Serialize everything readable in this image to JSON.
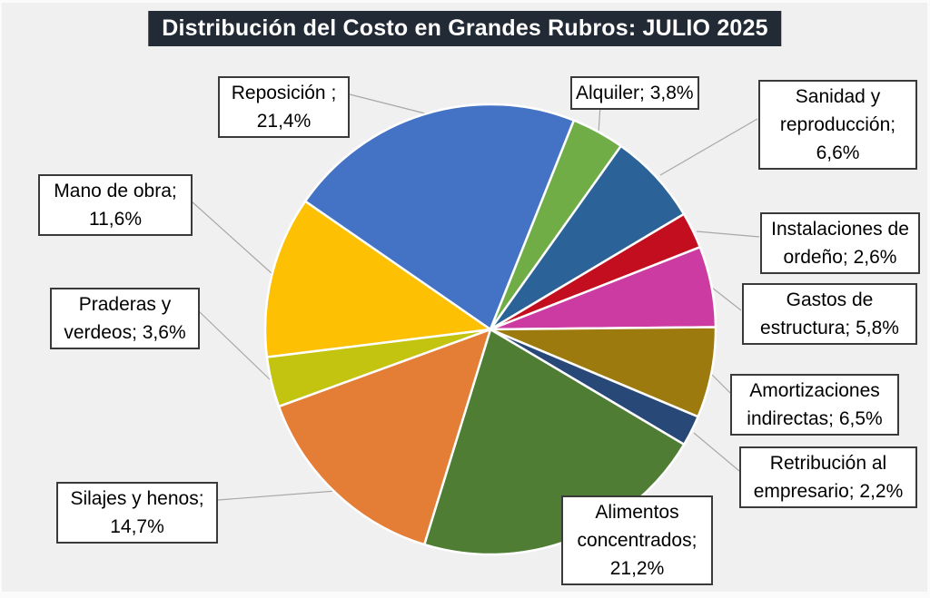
{
  "title": "Distribución del Costo en Grandes Rubros: JULIO 2025",
  "colors": {
    "page_background": "#fbfbfb",
    "chart_background": "#f0f0f0",
    "title_background": "#222a35",
    "title_text": "#ffffff",
    "label_box_background": "#ffffff",
    "label_box_border": "#3a3a3a",
    "leader_line": "#a8a8a8",
    "slice_separator": "#ffffff"
  },
  "chart_data": {
    "type": "pie",
    "title": "Distribución del Costo en Grandes Rubros: JULIO 2025",
    "legend_position": "none",
    "data_label_style": "outside-callout-boxes",
    "value_format": "comma-decimal-percent",
    "start_angle_deg": -55.3,
    "direction": "clockwise",
    "ids": [
      "reposicion",
      "alquiler",
      "sanidad-y-reproduccion",
      "instalaciones-de-ordeno",
      "gastos-de-estructura",
      "amortizaciones-indirectas",
      "retribucion-al-empresario",
      "alimentos-concentrados",
      "silajes-y-henos",
      "praderas-y-verdeos",
      "mano-de-obra"
    ],
    "categories": [
      "Reposición",
      "Alquiler",
      "Sanidad y reproducción",
      "Instalaciones de ordeño",
      "Gastos de estructura",
      "Amortizaciones indirectas",
      "Retribución al empresario",
      "Alimentos concentrados",
      "Silajes y henos",
      "Praderas y verdeos",
      "Mano de obra"
    ],
    "values": [
      21.4,
      3.8,
      6.6,
      2.6,
      5.8,
      6.5,
      2.2,
      21.2,
      14.7,
      3.6,
      11.6
    ],
    "labels": [
      "Reposición ; 21,4%",
      "Alquiler; 3,8%",
      "Sanidad y reproducción; 6,6%",
      "Instalaciones de ordeño; 2,6%",
      "Gastos de estructura; 5,8%",
      "Amortizaciones indirectas; 6,5%",
      "Retribución al empresario; 2,2%",
      "Alimentos concentrados; 21,2%",
      "Silajes y henos; 14,7%",
      "Praderas y verdeos; 3,6%",
      "Mano de obra; 11,6%"
    ],
    "slice_colors": [
      "#4472c4",
      "#70ad47",
      "#2b6398",
      "#c20e1e",
      "#cb3ba2",
      "#9d7a0d",
      "#284878",
      "#4e7d33",
      "#e47d35",
      "#c2c410",
      "#fec002"
    ]
  }
}
